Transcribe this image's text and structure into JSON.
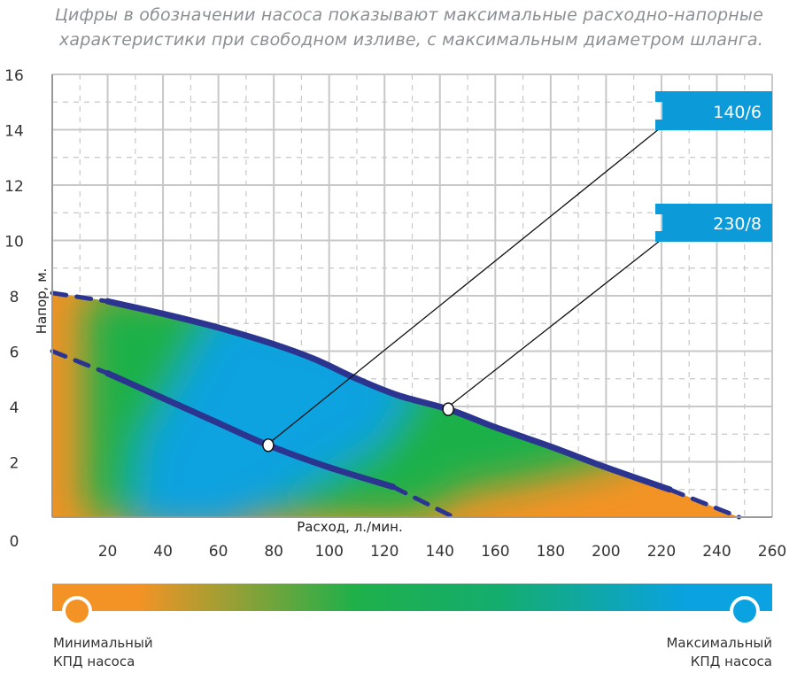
{
  "header": {
    "line1": "Цифры в обозначении насоса показывают максимальные расходно-напорные",
    "line2": "характеристики при свободном изливе, с максимальным диаметром шланга."
  },
  "chart_data": {
    "type": "line",
    "xlabel": "Расход, л./мин.",
    "ylabel": "Напор, м.",
    "xlim": [
      0,
      260
    ],
    "ylim": [
      0,
      16
    ],
    "xticks": [
      "20",
      "40",
      "60",
      "80",
      "100",
      "120",
      "140",
      "160",
      "180",
      "200",
      "220",
      "240",
      "260"
    ],
    "yticks": [
      "0",
      "2",
      "4",
      "6",
      "8",
      "10",
      "12",
      "14",
      "16"
    ],
    "grid": true,
    "series": [
      {
        "name": "140/6",
        "color": "#2b3590",
        "points": [
          [
            0,
            6.0
          ],
          [
            20,
            5.2
          ],
          [
            40,
            4.3
          ],
          [
            60,
            3.4
          ],
          [
            78,
            2.6
          ],
          [
            100,
            1.8
          ],
          [
            123,
            1.1
          ],
          [
            145,
            0
          ]
        ],
        "solid_range": [
          20,
          123
        ],
        "marker": [
          78,
          2.6
        ]
      },
      {
        "name": "230/8",
        "color": "#2b3590",
        "points": [
          [
            0,
            8.1
          ],
          [
            20,
            7.8
          ],
          [
            40,
            7.35
          ],
          [
            60,
            6.85
          ],
          [
            80,
            6.25
          ],
          [
            95,
            5.7
          ],
          [
            110,
            5.0
          ],
          [
            125,
            4.4
          ],
          [
            143,
            3.9
          ],
          [
            160,
            3.25
          ],
          [
            180,
            2.55
          ],
          [
            200,
            1.8
          ],
          [
            223,
            1.0
          ],
          [
            248,
            0
          ]
        ],
        "solid_range": [
          20,
          223
        ],
        "marker": [
          143,
          3.9
        ]
      }
    ]
  },
  "legend": {
    "min_label_1": "Минимальный",
    "min_label_2": "КПД насоса",
    "max_label_1": "Максимальный",
    "max_label_2": "КПД насоса",
    "min_color": "#f39325",
    "mid_color": "#1fb04a",
    "max_color": "#0aa2e0"
  },
  "colors": {
    "label_box": "#0c9bd8",
    "curve": "#2b3590",
    "grid": "#c8c8c8"
  }
}
